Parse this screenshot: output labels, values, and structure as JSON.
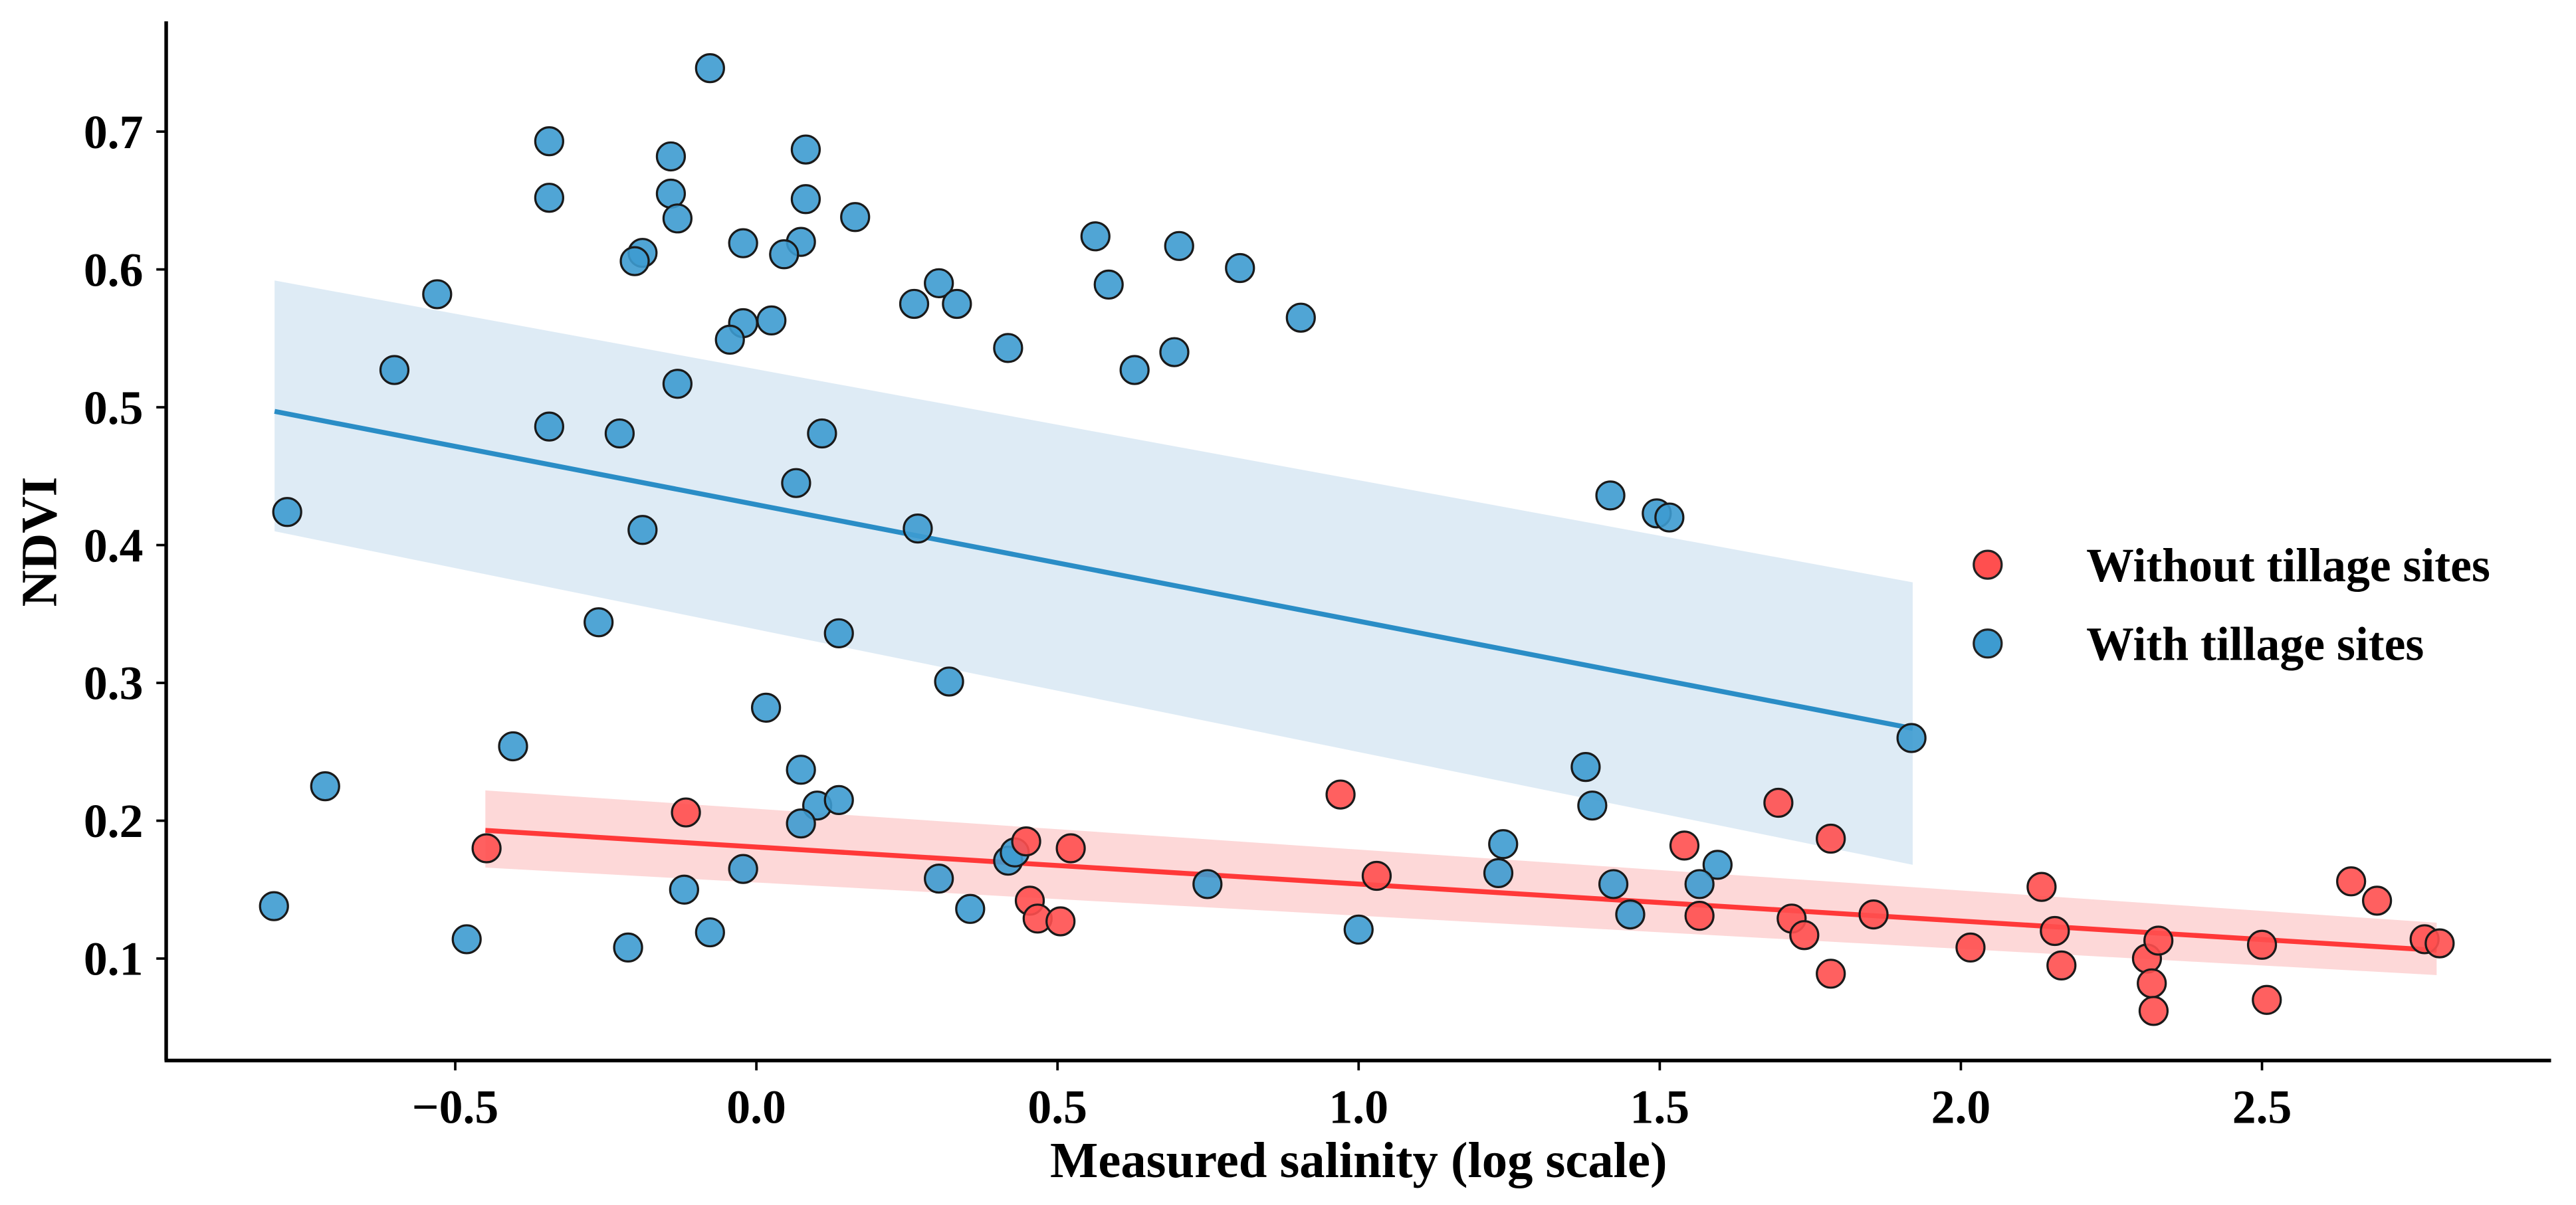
{
  "chart_data": {
    "type": "scatter",
    "title": "",
    "xlabel": "Measured salinity (log scale)",
    "ylabel": "NDVI",
    "xlim": [
      -0.98,
      2.98
    ],
    "ylim": [
      0.026,
      0.78
    ],
    "xticks": [
      -0.5,
      0.0,
      0.5,
      1.0,
      1.5,
      2.0,
      2.5
    ],
    "xtick_labels": [
      "−0.5",
      "0.0",
      "0.5",
      "1.0",
      "1.5",
      "2.0",
      "2.5"
    ],
    "yticks": [
      0.1,
      0.2,
      0.3,
      0.4,
      0.5,
      0.6,
      0.7
    ],
    "ytick_labels": [
      "0.1",
      "0.2",
      "0.3",
      "0.4",
      "0.5",
      "0.6",
      "0.7"
    ],
    "grid": false,
    "legend_position": "right",
    "series": [
      {
        "name": "Without tillage sites",
        "color": "#ff4f4f",
        "line_color": "#ff3838",
        "band_color": "#fdd6d6",
        "fit": {
          "x": [
            -0.45,
            2.79
          ],
          "y": [
            0.193,
            0.106
          ],
          "ci_low": [
            0.166,
            0.088
          ],
          "ci_high": [
            0.222,
            0.126
          ]
        },
        "points": [
          [
            -0.448,
            0.18
          ],
          [
            -0.117,
            0.206
          ],
          [
            0.448,
            0.185
          ],
          [
            0.522,
            0.18
          ],
          [
            0.454,
            0.142
          ],
          [
            0.467,
            0.129
          ],
          [
            0.505,
            0.127
          ],
          [
            0.97,
            0.219
          ],
          [
            1.03,
            0.16
          ],
          [
            1.697,
            0.213
          ],
          [
            1.784,
            0.187
          ],
          [
            1.541,
            0.182
          ],
          [
            1.566,
            0.131
          ],
          [
            1.719,
            0.129
          ],
          [
            1.74,
            0.117
          ],
          [
            1.855,
            0.132
          ],
          [
            1.784,
            0.089
          ],
          [
            2.016,
            0.108
          ],
          [
            2.134,
            0.152
          ],
          [
            2.156,
            0.12
          ],
          [
            2.167,
            0.095
          ],
          [
            2.309,
            0.1
          ],
          [
            2.328,
            0.113
          ],
          [
            2.317,
            0.082
          ],
          [
            2.32,
            0.062
          ],
          [
            2.5,
            0.11
          ],
          [
            2.508,
            0.07
          ],
          [
            2.648,
            0.156
          ],
          [
            2.691,
            0.142
          ],
          [
            2.77,
            0.114
          ],
          [
            2.795,
            0.111
          ]
        ]
      },
      {
        "name": "With tillage  sites",
        "color": "#3d9bd0",
        "line_color": "#2a8dc6",
        "band_color": "#dceaf4",
        "fit": {
          "x": [
            -0.8,
            1.92
          ],
          "y": [
            0.497,
            0.267
          ],
          "ci_low": [
            0.41,
            0.168
          ],
          "ci_high": [
            0.592,
            0.373
          ]
        },
        "points": [
          [
            -0.077,
            0.746
          ],
          [
            -0.344,
            0.693
          ],
          [
            -0.142,
            0.682
          ],
          [
            0.082,
            0.687
          ],
          [
            -0.344,
            0.652
          ],
          [
            -0.142,
            0.655
          ],
          [
            -0.131,
            0.637
          ],
          [
            0.082,
            0.651
          ],
          [
            0.164,
            0.638
          ],
          [
            0.074,
            0.62
          ],
          [
            -0.022,
            0.619
          ],
          [
            0.046,
            0.611
          ],
          [
            -0.189,
            0.612
          ],
          [
            -0.202,
            0.606
          ],
          [
            0.563,
            0.624
          ],
          [
            0.702,
            0.617
          ],
          [
            0.803,
            0.601
          ],
          [
            0.585,
            0.589
          ],
          [
            0.303,
            0.59
          ],
          [
            0.262,
            0.575
          ],
          [
            0.333,
            0.575
          ],
          [
            -0.53,
            0.582
          ],
          [
            0.904,
            0.565
          ],
          [
            0.025,
            0.563
          ],
          [
            -0.022,
            0.561
          ],
          [
            -0.044,
            0.549
          ],
          [
            0.418,
            0.543
          ],
          [
            0.694,
            0.54
          ],
          [
            0.628,
            0.527
          ],
          [
            -0.601,
            0.527
          ],
          [
            -0.131,
            0.517
          ],
          [
            -0.344,
            0.486
          ],
          [
            -0.227,
            0.481
          ],
          [
            0.109,
            0.481
          ],
          [
            0.066,
            0.445
          ],
          [
            -0.779,
            0.424
          ],
          [
            -0.189,
            0.411
          ],
          [
            0.268,
            0.412
          ],
          [
            1.418,
            0.436
          ],
          [
            1.495,
            0.423
          ],
          [
            1.516,
            0.42
          ],
          [
            -0.262,
            0.344
          ],
          [
            0.137,
            0.336
          ],
          [
            0.32,
            0.301
          ],
          [
            0.016,
            0.282
          ],
          [
            -0.404,
            0.254
          ],
          [
            1.918,
            0.26
          ],
          [
            1.377,
            0.239
          ],
          [
            0.074,
            0.237
          ],
          [
            -0.716,
            0.225
          ],
          [
            1.388,
            0.211
          ],
          [
            0.101,
            0.211
          ],
          [
            0.137,
            0.215
          ],
          [
            0.074,
            0.198
          ],
          [
            1.24,
            0.183
          ],
          [
            1.596,
            0.168
          ],
          [
            0.418,
            0.171
          ],
          [
            0.429,
            0.177
          ],
          [
            -0.022,
            0.165
          ],
          [
            1.232,
            0.162
          ],
          [
            0.303,
            0.158
          ],
          [
            1.423,
            0.154
          ],
          [
            1.566,
            0.154
          ],
          [
            -0.12,
            0.15
          ],
          [
            0.749,
            0.154
          ],
          [
            0.355,
            0.136
          ],
          [
            1.451,
            0.132
          ],
          [
            -0.801,
            0.138
          ],
          [
            1.0,
            0.121
          ],
          [
            -0.077,
            0.119
          ],
          [
            -0.481,
            0.114
          ],
          [
            -0.213,
            0.108
          ]
        ]
      }
    ]
  }
}
